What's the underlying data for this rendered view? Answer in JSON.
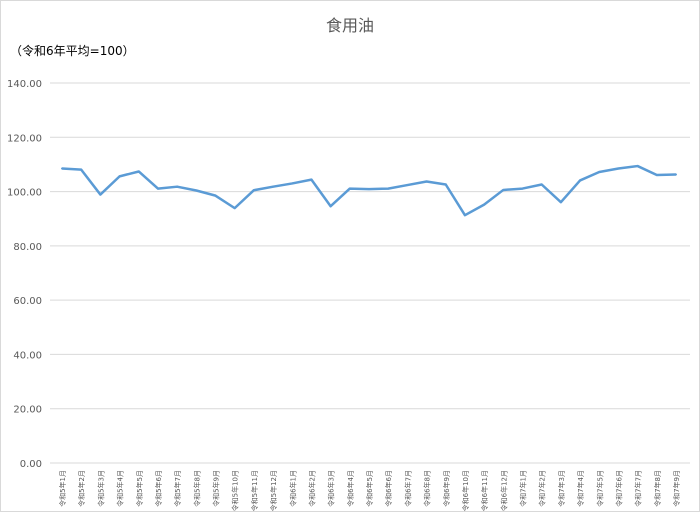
{
  "chart_data": {
    "type": "line",
    "title": "食用油",
    "subtitle": "（令和6年平均=100）",
    "ylim": [
      0,
      140
    ],
    "yticks": [
      "0.00",
      "20.00",
      "40.00",
      "60.00",
      "80.00",
      "100.00",
      "120.00",
      "140.00"
    ],
    "grid": true,
    "line_color": "#5b9bd5",
    "categories": [
      "令和5年1月",
      "令和5年2月",
      "令和5年3月",
      "令和5年4月",
      "令和5年5月",
      "令和5年6月",
      "令和5年7月",
      "令和5年8月",
      "令和5年9月",
      "令和5年10月",
      "令和5年11月",
      "令和5年12月",
      "令和6年1月",
      "令和6年2月",
      "令和6年3月",
      "令和6年4月",
      "令和6年5月",
      "令和6年6月",
      "令和6年7月",
      "令和6年8月",
      "令和6年9月",
      "令和6年10月",
      "令和6年11月",
      "令和6年12月",
      "令和7年1月",
      "令和7年2月",
      "令和7年3月",
      "令和7年4月",
      "令和7年5月",
      "令和7年6月",
      "令和7年7月",
      "令和7年8月",
      "令和7年9月"
    ],
    "series": [
      {
        "values": [
          108.5,
          108.1,
          98.9,
          105.6,
          107.4,
          101.1,
          101.8,
          100.4,
          98.5,
          93.9,
          100.5,
          101.8,
          103.0,
          104.4,
          94.6,
          101.1,
          100.9,
          101.1,
          102.4,
          103.7,
          102.6,
          91.3,
          95.2,
          100.6,
          101.1,
          102.6,
          96.1,
          104.1,
          107.2,
          108.5,
          109.4,
          106.1,
          106.3
        ]
      }
    ]
  }
}
